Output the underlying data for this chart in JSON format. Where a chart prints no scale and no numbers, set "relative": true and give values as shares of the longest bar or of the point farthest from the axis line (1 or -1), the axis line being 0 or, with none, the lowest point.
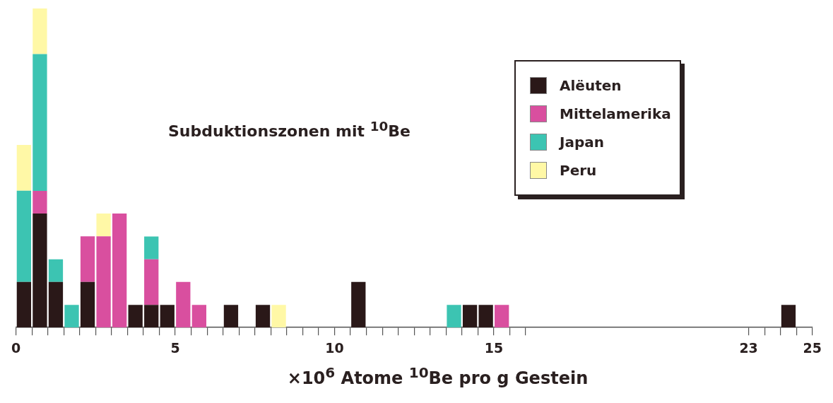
{
  "chart_data": {
    "type": "bar",
    "title": "Subduktionszonen mit $^{10}$Be",
    "xlabel": "×10$^{6}$ Atome $^{10}$Be pro g Gestein",
    "x": [
      0.25,
      0.75,
      1.25,
      1.75,
      2.25,
      2.75,
      3.25,
      3.75,
      4.25,
      4.75,
      5.25,
      5.75,
      6.75,
      7.75,
      8.25,
      10.75,
      13.75,
      14.25,
      14.75,
      15.25,
      24.25
    ],
    "stacked": true,
    "relative": true,
    "series": [
      {
        "name": "Alëuten",
        "color": "#2a1818",
        "values": [
          0.143,
          0.357,
          0.143,
          0,
          0.143,
          0,
          0,
          0.071,
          0.071,
          0.071,
          0,
          0,
          0.071,
          0.071,
          0,
          0.143,
          0,
          0.071,
          0.071,
          0,
          0.071
        ]
      },
      {
        "name": "Mittelamerika",
        "color": "#d94f9f",
        "values": [
          0,
          0.071,
          0,
          0,
          0.143,
          0.286,
          0.357,
          0,
          0.143,
          0,
          0.143,
          0.071,
          0,
          0,
          0,
          0,
          0,
          0,
          0,
          0.071,
          0
        ]
      },
      {
        "name": "Japan",
        "color": "#3cc4b2",
        "values": [
          0.286,
          0.429,
          0.071,
          0.071,
          0,
          0,
          0,
          0,
          0.071,
          0,
          0,
          0,
          0,
          0,
          0,
          0,
          0.071,
          0,
          0,
          0,
          0
        ]
      },
      {
        "name": "Peru",
        "color": "#fff8a6",
        "values": [
          0.143,
          0.143,
          0,
          0,
          0,
          0.071,
          0,
          0,
          0,
          0,
          0,
          0,
          0,
          0,
          0.071,
          0,
          0,
          0,
          0,
          0,
          0
        ]
      }
    ],
    "xlim": [
      0,
      25
    ],
    "xticks": [
      0,
      {
        "value": 0.5,
        "label": null
      },
      {
        "value": 1,
        "label": null
      },
      {
        "value": 1.5,
        "label": null
      },
      {
        "value": 2,
        "label": null
      },
      {
        "value": 2.5,
        "label": null
      },
      {
        "value": 3,
        "label": null
      },
      {
        "value": 3.5,
        "label": null
      },
      {
        "value": 4,
        "label": null
      },
      {
        "value": 4.5,
        "label": null
      },
      5,
      {
        "value": 5.5,
        "label": null
      },
      {
        "value": 6,
        "label": null
      },
      {
        "value": 6.5,
        "label": null
      },
      {
        "value": 7,
        "label": null
      },
      {
        "value": 7.5,
        "label": null
      },
      {
        "value": 8,
        "label": null
      },
      {
        "value": 8.5,
        "label": null
      },
      {
        "value": 9,
        "label": null
      },
      {
        "value": 9.5,
        "label": null
      },
      10,
      {
        "value": 10.5,
        "label": null
      },
      {
        "value": 11,
        "label": null
      },
      {
        "value": 11.5,
        "label": null
      },
      {
        "value": 12,
        "label": null
      },
      {
        "value": 12.5,
        "label": null
      },
      {
        "value": 13,
        "label": null
      },
      {
        "value": 13.5,
        "label": null
      },
      {
        "value": 14,
        "label": null
      },
      {
        "value": 14.5,
        "label": null
      },
      15,
      {
        "value": 15.5,
        "label": null
      },
      {
        "value": 16,
        "label": null
      },
      23,
      {
        "value": 23.5,
        "label": null
      },
      {
        "value": 24,
        "label": null
      },
      {
        "value": 24.5,
        "label": null
      },
      25
    ],
    "tick_labels": "x",
    "legend": "top right"
  }
}
